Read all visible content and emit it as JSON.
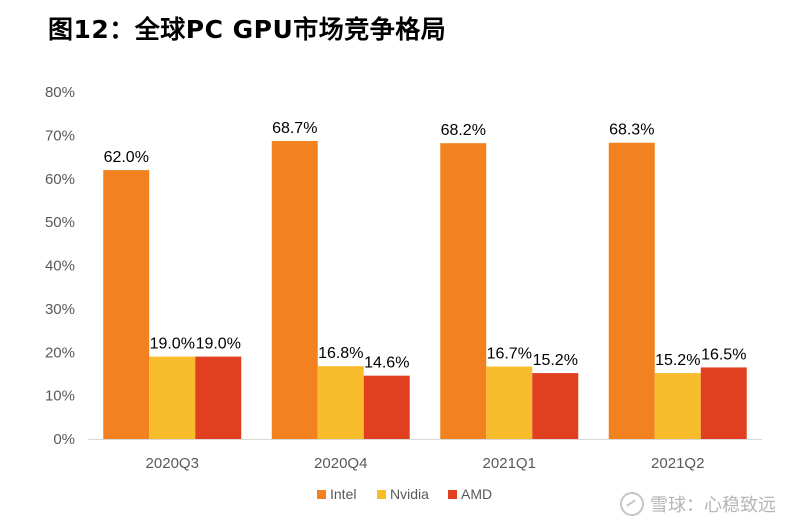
{
  "figure_title": "图12：全球PC GPU市场竞争格局",
  "watermark": "雪球：心稳致远",
  "chart_data": {
    "type": "bar",
    "title": "",
    "xlabel": "",
    "ylabel": "",
    "categories": [
      "2020Q3",
      "2020Q4",
      "2021Q1",
      "2021Q2"
    ],
    "series": [
      {
        "name": "Intel",
        "values": [
          62.0,
          68.7,
          68.2,
          68.3
        ],
        "color": "#F28220"
      },
      {
        "name": "Nvidia",
        "values": [
          19.0,
          16.8,
          16.7,
          15.2
        ],
        "color": "#F9BD2C"
      },
      {
        "name": "AMD",
        "values": [
          19.0,
          14.6,
          15.2,
          16.5
        ],
        "color": "#E0401F"
      }
    ],
    "ylim": [
      0,
      80
    ],
    "yticks": [
      0,
      10,
      20,
      30,
      40,
      50,
      60,
      70,
      80
    ],
    "ytick_labels": [
      "0%",
      "10%",
      "20%",
      "30%",
      "40%",
      "50%",
      "60%",
      "70%",
      "80%"
    ],
    "data_labels": [
      [
        "62.0%",
        "68.7%",
        "68.2%",
        "68.3%"
      ],
      [
        "19.0%",
        "16.8%",
        "16.7%",
        "15.2%"
      ],
      [
        "19.0%",
        "14.6%",
        "15.2%",
        "16.5%"
      ]
    ],
    "grid": false,
    "legend_position": "bottom"
  }
}
